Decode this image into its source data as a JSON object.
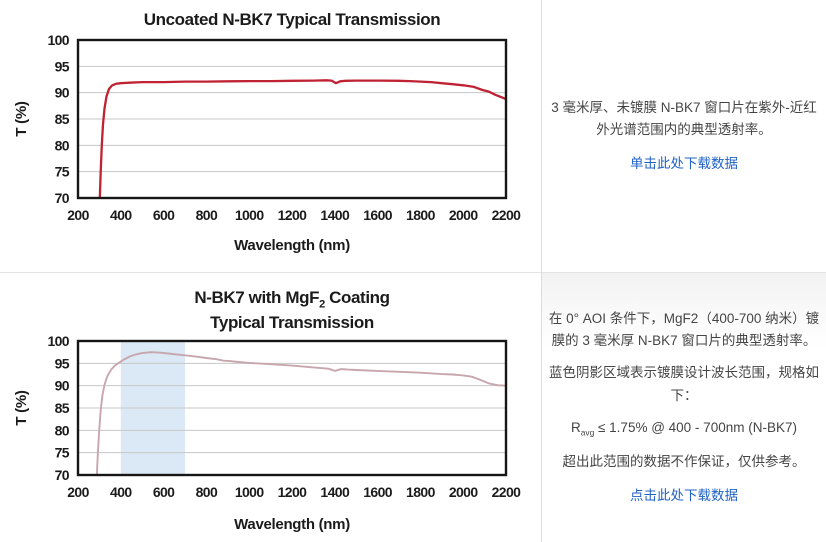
{
  "colors": {
    "chart1_line": "#bf2232",
    "chart2_line": "#c7a7ad",
    "band_fill": "#dbe8f5",
    "grid": "#c7c7c7",
    "axis_border": "#161616",
    "title_text": "#1b1b1b",
    "panel_text": "#454545",
    "link_blue": "#2063c6",
    "divider": "#e3e3e3"
  },
  "chart_data": [
    {
      "type": "line",
      "title": "Uncoated N-BK7 Typical Transmission",
      "xlabel": "Wavelength (nm)",
      "ylabel": "T (%)",
      "xlim": [
        200,
        2200
      ],
      "ylim": [
        70,
        100
      ],
      "xticks": [
        200,
        400,
        600,
        800,
        1000,
        1200,
        1400,
        1600,
        1800,
        2000,
        2200
      ],
      "yticks": [
        70,
        75,
        80,
        85,
        90,
        95,
        100
      ],
      "grid": "horizontal-only",
      "legend": "none",
      "line_color": "#bf2232",
      "line_width": 2.3,
      "x": [
        302,
        306,
        311,
        317,
        324,
        333,
        345,
        360,
        380,
        400,
        440,
        500,
        600,
        700,
        800,
        900,
        1000,
        1100,
        1200,
        1300,
        1360,
        1385,
        1405,
        1425,
        1450,
        1500,
        1600,
        1700,
        1750,
        1800,
        1850,
        1900,
        1950,
        2000,
        2050,
        2090,
        2120,
        2150,
        2175,
        2200
      ],
      "y": [
        70,
        75,
        80,
        84,
        87,
        89.3,
        90.7,
        91.4,
        91.7,
        91.8,
        91.9,
        92.0,
        92.0,
        92.1,
        92.1,
        92.15,
        92.2,
        92.2,
        92.25,
        92.3,
        92.35,
        92.3,
        91.8,
        92.15,
        92.25,
        92.3,
        92.3,
        92.25,
        92.2,
        92.1,
        92.0,
        91.8,
        91.6,
        91.4,
        91.1,
        90.5,
        90.2,
        89.6,
        89.2,
        88.8
      ]
    },
    {
      "type": "line",
      "title_line1_prefix": "N-BK7 with MgF",
      "title_line1_sub": "2",
      "title_line1_suffix": " Coating",
      "title_line2": "Typical Transmission",
      "xlabel": "Wavelength (nm)",
      "ylabel": "T (%)",
      "xlim": [
        200,
        2200
      ],
      "ylim": [
        70,
        100
      ],
      "xticks": [
        200,
        400,
        600,
        800,
        1000,
        1200,
        1400,
        1600,
        1800,
        2000,
        2200
      ],
      "yticks": [
        70,
        75,
        80,
        85,
        90,
        95,
        100
      ],
      "grid": "horizontal-only",
      "legend": "none",
      "band": [
        400,
        700
      ],
      "band_color": "#dbe8f5",
      "line_color": "#c7a7ad",
      "line_width": 1.9,
      "x": [
        288,
        293,
        299,
        306,
        314,
        324,
        338,
        355,
        372,
        390,
        410,
        440,
        470,
        500,
        540,
        580,
        620,
        660,
        700,
        750,
        800,
        850,
        880,
        910,
        950,
        1000,
        1100,
        1200,
        1300,
        1370,
        1400,
        1430,
        1460,
        1500,
        1600,
        1700,
        1800,
        1900,
        1950,
        2000,
        2040,
        2080,
        2120,
        2160,
        2200
      ],
      "y": [
        70,
        75,
        80,
        84.5,
        87.8,
        90.2,
        92.2,
        93.6,
        94.5,
        95.1,
        95.7,
        96.5,
        97.0,
        97.3,
        97.5,
        97.4,
        97.2,
        97.0,
        96.8,
        96.5,
        96.2,
        95.9,
        95.6,
        95.5,
        95.3,
        95.1,
        94.8,
        94.5,
        94.1,
        93.8,
        93.3,
        93.7,
        93.6,
        93.5,
        93.3,
        93.1,
        92.9,
        92.6,
        92.5,
        92.3,
        92.0,
        91.3,
        90.5,
        90.1,
        90.0
      ]
    }
  ],
  "panel1": {
    "description": "3 毫米厚、未镀膜 N-BK7 窗口片在紫外-近红外光谱范围内的典型透射率。",
    "download_link": "单击此处下载数据"
  },
  "panel2": {
    "para1": "在 0° AOI 条件下，MgF2（400-700 纳米）镀膜的 3 毫米厚 N-BK7 窗口片的典型透射率。",
    "para2": "蓝色阴影区域表示镀膜设计波长范围，规格如下：",
    "spec_base": "R",
    "spec_sub": "avg",
    "spec_rest": " ≤ 1.75% @ 400 - 700nm (N-BK7)",
    "para3": "超出此范围的数据不作保证，仅供参考。",
    "download_link": "点击此处下载数据"
  }
}
